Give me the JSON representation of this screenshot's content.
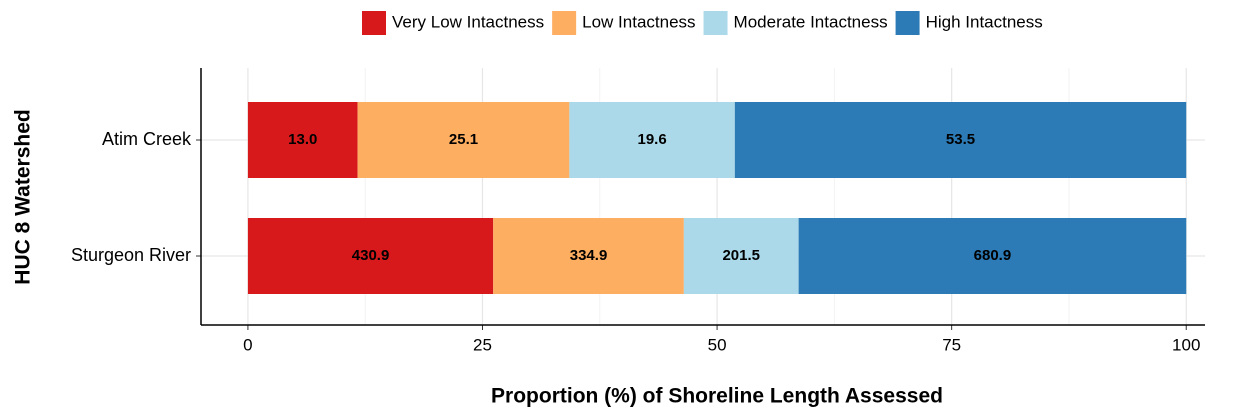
{
  "chart_data": {
    "type": "stacked_barh",
    "xlabel": "Proportion (%) of Shoreline Length Assessed",
    "ylabel": "HUC 8 Watershed",
    "categories": [
      "Atim Creek",
      "Sturgeon River"
    ],
    "series": [
      {
        "name": "Very Low Intactness",
        "color": "#d7191c",
        "values": [
          11.69,
          26.14
        ],
        "length_labels": [
          "13.0",
          "430.9"
        ]
      },
      {
        "name": "Low Intactness",
        "color": "#fdae61",
        "values": [
          22.57,
          20.32
        ],
        "length_labels": [
          "25.1",
          "334.9"
        ]
      },
      {
        "name": "Moderate Intactness",
        "color": "#abd9e9",
        "values": [
          17.63,
          12.23
        ],
        "length_labels": [
          "19.6",
          "201.5"
        ]
      },
      {
        "name": "High Intactness",
        "color": "#2c7bb6",
        "values": [
          48.11,
          41.31
        ],
        "length_labels": [
          "53.5",
          "680.9"
        ]
      }
    ],
    "xlim": [
      -5,
      102
    ],
    "xticks": [
      0,
      25,
      50,
      75,
      100
    ],
    "minor_xticks": [
      12.5,
      37.5,
      62.5,
      87.5
    ],
    "grid": true,
    "legend": "top"
  }
}
